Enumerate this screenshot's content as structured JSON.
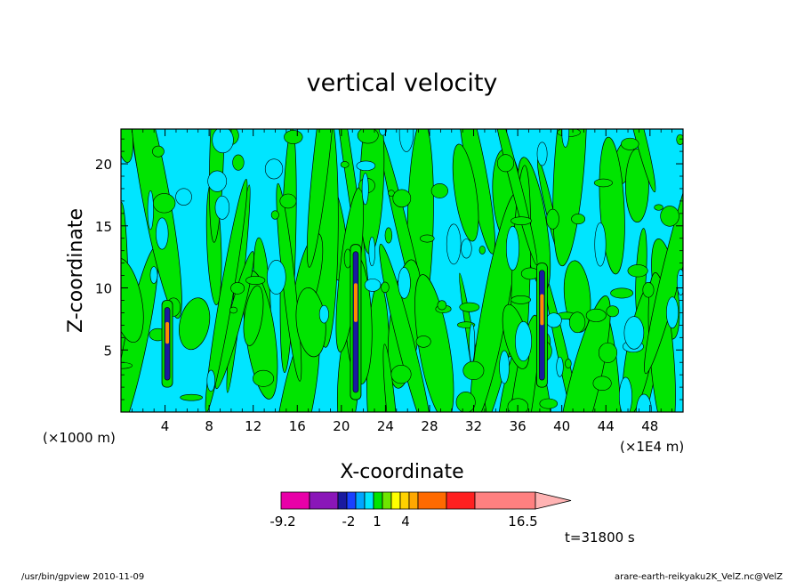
{
  "chart_data": {
    "type": "heatmap",
    "title": "vertical velocity",
    "xlabel": "X-coordinate",
    "ylabel": "Z-coordinate",
    "x_unit_left": "(×1000 m)",
    "x_unit_right": "(×1E4 m)",
    "xlim": [
      0,
      51
    ],
    "ylim": [
      0,
      22.8
    ],
    "x_ticks": [
      4,
      8,
      12,
      16,
      20,
      24,
      28,
      32,
      36,
      40,
      44,
      48
    ],
    "y_ticks": [
      5,
      10,
      15,
      20
    ],
    "colors": {
      "background": "#00e5ff",
      "positive_weak": "#00e400",
      "updraft_core": "#ff8c00",
      "downdraft_core": "#1a1aa0",
      "contour": "#000000"
    },
    "fields": [
      {
        "kind": "background",
        "level": "weak_negative"
      },
      {
        "kind": "weak_positive_regions",
        "description": "streaky green vertical features"
      },
      {
        "kind": "updraft_cores",
        "x": [
          4.2,
          21.3,
          38.2
        ],
        "z_range": [
          [
            2,
            9
          ],
          [
            1,
            13.5
          ],
          [
            2,
            12
          ]
        ]
      }
    ],
    "colorbar": {
      "segments": [
        "#e800a8",
        "#8a16b8",
        "#1a1aa0",
        "#1a40ff",
        "#00a6ff",
        "#00e5ff",
        "#00e400",
        "#6fe600",
        "#ffff00",
        "#ffd200",
        "#ffa800",
        "#ff6a00",
        "#ff2020",
        "#ff8080"
      ],
      "tick_labels": [
        "-9.2",
        "-2",
        "1",
        "4",
        "16.5"
      ]
    },
    "time_label": "t=31800 s"
  },
  "footer": {
    "left": "/usr/bin/gpview   2010-11-09",
    "right": "arare-earth-reikyaku2K_VelZ.nc@VelZ"
  }
}
